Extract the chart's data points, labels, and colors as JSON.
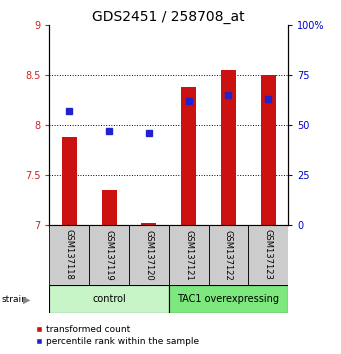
{
  "title": "GDS2451 / 258708_at",
  "samples": [
    "GSM137118",
    "GSM137119",
    "GSM137120",
    "GSM137121",
    "GSM137122",
    "GSM137123"
  ],
  "transformed_counts": [
    7.88,
    7.35,
    7.02,
    8.38,
    8.55,
    8.5
  ],
  "percentile_ranks": [
    57,
    47,
    46,
    62,
    65,
    63
  ],
  "bar_bottom": 7.0,
  "ylim_left": [
    7.0,
    9.0
  ],
  "ylim_right": [
    0,
    100
  ],
  "yticks_left": [
    7.0,
    7.5,
    8.0,
    8.5,
    9.0
  ],
  "ytick_labels_left": [
    "7",
    "7.5",
    "8",
    "8.5",
    "9"
  ],
  "yticks_right": [
    0,
    25,
    50,
    75,
    100
  ],
  "ytick_labels_right": [
    "0",
    "25",
    "50",
    "75",
    "100%"
  ],
  "hgrid_vals": [
    7.5,
    8.0,
    8.5
  ],
  "groups": [
    {
      "label": "control",
      "indices": [
        0,
        1,
        2
      ],
      "color": "#c8f5c8"
    },
    {
      "label": "TAC1 overexpressing",
      "indices": [
        3,
        4,
        5
      ],
      "color": "#7de87d"
    }
  ],
  "bar_color": "#cc1111",
  "dot_color": "#2222cc",
  "tick_color_left": "#cc2222",
  "tick_color_right": "#0000cc",
  "tick_fontsize": 7,
  "title_fontsize": 10,
  "sample_fontsize": 6,
  "group_fontsize": 7,
  "legend_fontsize": 6.5
}
